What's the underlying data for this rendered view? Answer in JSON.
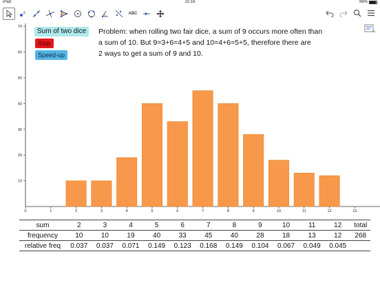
{
  "status_bar": {
    "device": "iPad",
    "time": "15:16",
    "battery": "86%"
  },
  "toolbar": {
    "tools": [
      "move-tool",
      "point-tool",
      "line-tool",
      "perpendicular-tool",
      "polygon-tool",
      "circle-tool",
      "circle-through-points-tool",
      "angle-tool",
      "reflect-tool",
      "text-tool",
      "slider-tool",
      "move-view-tool"
    ],
    "text_tool_label": "ABC"
  },
  "buttons": {
    "sum_label": "Sum of two dice",
    "stop_label": "Stop",
    "speed_label": "Speed-up"
  },
  "problem": {
    "line1": "Problem: when rolling two fair dice, a sum of 9 occurs more often than",
    "line2": "a sum of 10. But 9=3+6=4+5  and  10=4+6=5+5, therefore there are",
    "line3": "2 ways to get a sum of 9 and 10."
  },
  "chart_data": {
    "type": "bar",
    "categories": [
      2,
      3,
      4,
      5,
      6,
      7,
      8,
      9,
      10,
      11,
      12
    ],
    "values": [
      10,
      10,
      19,
      40,
      33,
      45,
      40,
      28,
      18,
      13,
      12
    ],
    "x_ticks": [
      0,
      1,
      2,
      3,
      4,
      5,
      6,
      7,
      8,
      9,
      10,
      11,
      12,
      13
    ],
    "y_ticks": [
      10,
      20,
      30,
      40,
      50,
      60,
      70
    ],
    "xlim": [
      0,
      14
    ],
    "ylim": [
      0,
      70
    ],
    "bar_color": "#f7984a",
    "bar_edge": "#e8862e"
  },
  "table": {
    "row_labels": [
      "sum",
      "frequency",
      "relative freq"
    ],
    "sum": [
      "2",
      "3",
      "4",
      "5",
      "6",
      "7",
      "8",
      "9",
      "10",
      "11",
      "12",
      "total"
    ],
    "frequency": [
      "10",
      "10",
      "19",
      "40",
      "33",
      "45",
      "40",
      "28",
      "18",
      "13",
      "12",
      "268"
    ],
    "relative_freq": [
      "0.037",
      "0.037",
      "0.071",
      "0.149",
      "0.123",
      "0.168",
      "0.149",
      "0.104",
      "0.067",
      "0.049",
      "0.045",
      ""
    ]
  }
}
